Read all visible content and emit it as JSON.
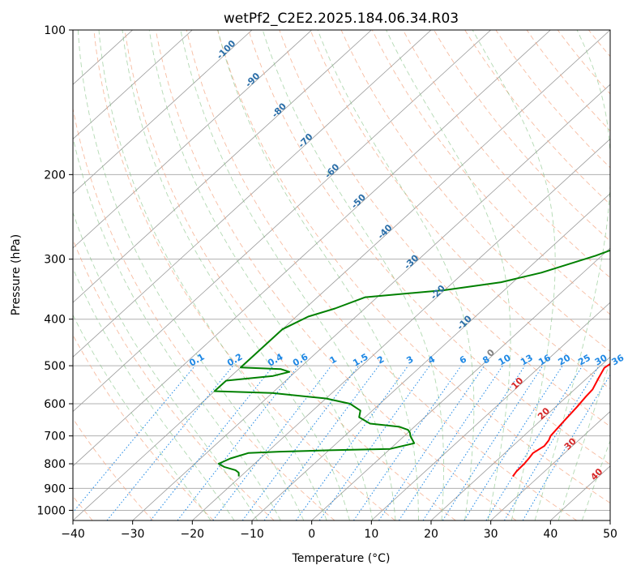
{
  "chart_data": {
    "type": "line",
    "title": "wetPf2_C2E2.2025.184.06.34.R03",
    "xlabel": "Temperature (°C)",
    "ylabel": "Pressure (hPa)",
    "xlim": [
      -40,
      50
    ],
    "ylim": [
      1050,
      100
    ],
    "y_scale": "log",
    "grid": true,
    "x_ticks": [
      "−40",
      "−30",
      "−20",
      "−10",
      "0",
      "10",
      "20",
      "30",
      "40",
      "50"
    ],
    "y_ticks": [
      "100",
      "200",
      "300",
      "400",
      "500",
      "600",
      "700",
      "800",
      "900",
      "1000"
    ],
    "colors": {
      "temperature": "#ff0000",
      "dewpoint": "#008000",
      "dry_adiabat": "#f4a582",
      "moist_adiabat": "#7fbf7f",
      "mixing_ratio": "#1e88e5",
      "isotherm_label_blue": "#2b6ea8",
      "isotherm_label_red": "#d62728",
      "isotherm_label_gray": "#808080"
    },
    "series": [
      {
        "role": "temperature",
        "points": [
          [
            25.6,
            850
          ],
          [
            25.3,
            830
          ],
          [
            25.2,
            800
          ],
          [
            25.0,
            780
          ],
          [
            24.7,
            760
          ],
          [
            25.3,
            735
          ],
          [
            25.0,
            715
          ],
          [
            24.5,
            700
          ],
          [
            24.3,
            680
          ],
          [
            24.0,
            650
          ],
          [
            23.6,
            610
          ],
          [
            23.2,
            580
          ],
          [
            23.0,
            560
          ],
          [
            21.9,
            530
          ],
          [
            21.0,
            505
          ],
          [
            21.6,
            485
          ],
          [
            22.0,
            467
          ],
          [
            20.3,
            450
          ],
          [
            18.5,
            435
          ],
          [
            17.5,
            420
          ],
          [
            17.0,
            400
          ],
          [
            15.5,
            370
          ],
          [
            15.0,
            350
          ],
          [
            13.8,
            320
          ],
          [
            12.0,
            300
          ],
          [
            9.8,
            280
          ],
          [
            8.2,
            260
          ],
          [
            6.0,
            230
          ],
          [
            4.6,
            210
          ],
          [
            3.2,
            200
          ],
          [
            0.5,
            180
          ],
          [
            -2.0,
            160
          ],
          [
            -3.5,
            150
          ],
          [
            -5.0,
            140
          ],
          [
            -6.2,
            133
          ],
          [
            -6.2,
            127
          ],
          [
            -5.5,
            120
          ],
          [
            -4.6,
            112
          ],
          [
            -2.0,
            106
          ],
          [
            1.5,
            100
          ]
        ]
      },
      {
        "role": "dewpoint",
        "points": [
          [
            -20.3,
            850
          ],
          [
            -21.0,
            835
          ],
          [
            -22.0,
            825
          ],
          [
            -24.5,
            812
          ],
          [
            -26.0,
            800
          ],
          [
            -25.0,
            780
          ],
          [
            -23.0,
            760
          ],
          [
            -18.0,
            755
          ],
          [
            -10.0,
            750
          ],
          [
            0.0,
            745
          ],
          [
            3.0,
            725
          ],
          [
            1.0,
            700
          ],
          [
            0.4,
            690
          ],
          [
            -0.5,
            680
          ],
          [
            -2.5,
            670
          ],
          [
            -8.0,
            660
          ],
          [
            -11.0,
            640
          ],
          [
            -12.0,
            620
          ],
          [
            -15.0,
            600
          ],
          [
            -20.0,
            585
          ],
          [
            -30.0,
            570
          ],
          [
            -40.0,
            565
          ],
          [
            -40.0,
            537
          ],
          [
            -33.0,
            525
          ],
          [
            -31.0,
            515
          ],
          [
            -33.0,
            508
          ],
          [
            -40.0,
            504
          ],
          [
            -40.0,
            420
          ],
          [
            -38.0,
            395
          ],
          [
            -35.0,
            380
          ],
          [
            -32.0,
            360
          ],
          [
            -20.0,
            348
          ],
          [
            -12.0,
            335
          ],
          [
            -7.0,
            320
          ],
          [
            -1.0,
            295
          ],
          [
            2.0,
            280
          ],
          [
            5.0,
            270
          ],
          [
            7.5,
            255
          ],
          [
            5.5,
            240
          ],
          [
            4.8,
            220
          ],
          [
            4.8,
            205
          ],
          [
            3.5,
            195
          ],
          [
            0.8,
            178
          ],
          [
            -2.2,
            158
          ],
          [
            -4.3,
            145
          ],
          [
            -6.0,
            135
          ],
          [
            -6.5,
            128
          ],
          [
            -5.8,
            120
          ],
          [
            -5.3,
            112
          ],
          [
            -3.0,
            106
          ],
          [
            0.8,
            100
          ]
        ]
      }
    ],
    "mixing_ratio_labels": [
      "0.1",
      "0.2",
      "0.4",
      "0.6",
      "1",
      "1.5",
      "2",
      "3",
      "4",
      "6",
      "8",
      "10",
      "13",
      "16",
      "20",
      "25",
      "30",
      "36"
    ],
    "isotherm_labels": [
      "-100",
      "-90",
      "-80",
      "-70",
      "-60",
      "-50",
      "-40",
      "-30",
      "-20",
      "-10",
      "0",
      "10",
      "20",
      "30",
      "40"
    ]
  }
}
